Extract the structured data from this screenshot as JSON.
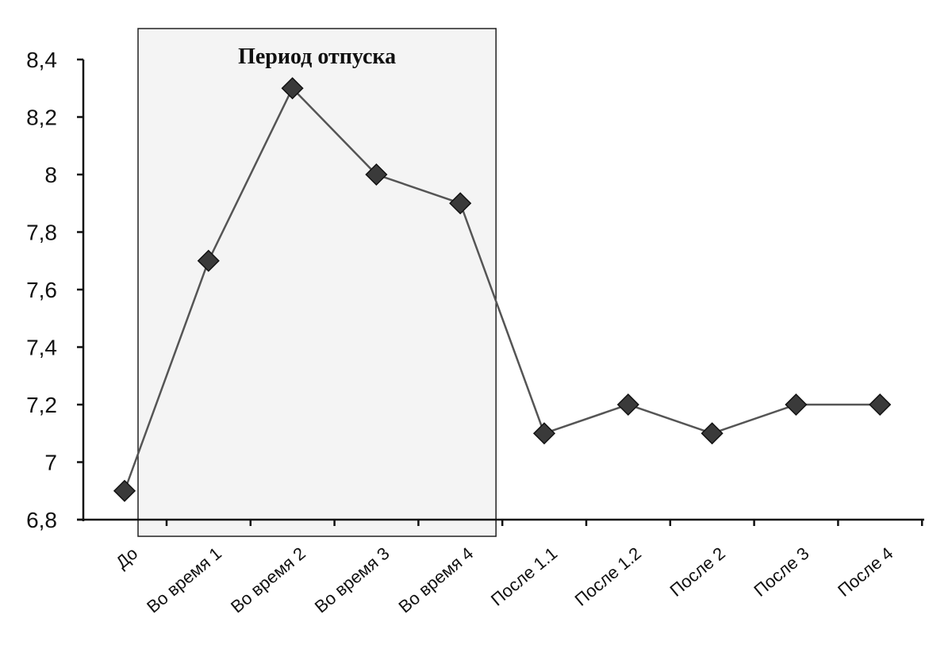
{
  "chart_data": {
    "type": "line",
    "title": "",
    "xlabel": "",
    "ylabel": "",
    "categories": [
      "До",
      "Во время 1",
      "Во время 2",
      "Во время 3",
      "Во время 4",
      "После 1.1",
      "После 1.2",
      "После 2",
      "После 3",
      "После 4"
    ],
    "y_tick_labels": [
      "6,8",
      "7",
      "7,2",
      "7,4",
      "7,6",
      "7,8",
      "8",
      "8,2",
      "8,4"
    ],
    "ylim": [
      6.8,
      8.4
    ],
    "grid": false,
    "legend": "none",
    "series": [
      {
        "values": [
          6.9,
          7.7,
          8.3,
          8.0,
          7.9,
          7.1,
          7.2,
          7.1,
          7.2,
          7.2
        ]
      }
    ],
    "annotations": [
      {
        "text": "Период отпуска",
        "from_category": "До",
        "to_category": "Во время 4"
      }
    ],
    "colors": {
      "line": "#555555",
      "marker": "#3a3a3a",
      "shade": "#f4f4f4",
      "axis": "#111111"
    }
  }
}
